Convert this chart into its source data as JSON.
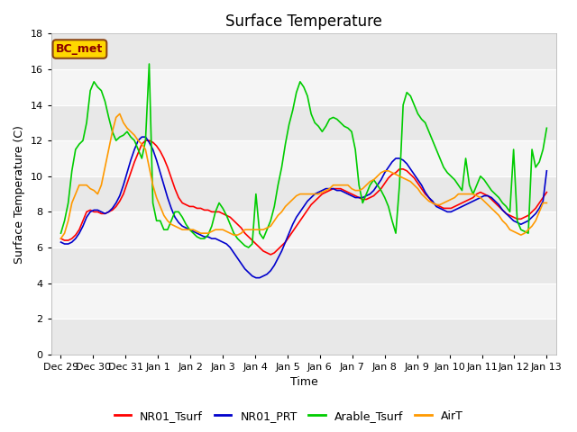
{
  "title": "Surface Temperature",
  "ylabel": "Surface Temperature (C)",
  "xlabel": "Time",
  "annotation": "BC_met",
  "ylim": [
    0,
    18
  ],
  "yticks": [
    0,
    2,
    4,
    6,
    8,
    10,
    12,
    14,
    16,
    18
  ],
  "series_colors": {
    "NR01_Tsurf": "#ff0000",
    "NR01_PRT": "#0000cc",
    "Arable_Tsurf": "#00cc00",
    "AirT": "#ff9900"
  },
  "fig_facecolor": "#ffffff",
  "band_colors": [
    "#e8e8e8",
    "#f5f5f5"
  ],
  "title_fontsize": 12,
  "axis_fontsize": 9,
  "tick_fontsize": 8,
  "legend_fontsize": 9,
  "linewidth": 1.2,
  "xtick_labels": [
    "Dec 29",
    "Dec 30",
    "Dec 31",
    "Jan 1",
    "Jan 2",
    "Jan 3",
    "Jan 4",
    "Jan 5",
    "Jan 6",
    "Jan 7",
    "Jan 8",
    "Jan 9",
    "Jan 10",
    "Jan 11",
    "Jan 12",
    "Jan 13"
  ],
  "NR01_Tsurf": [
    6.5,
    6.4,
    6.4,
    6.5,
    6.7,
    7.0,
    7.5,
    8.0,
    8.1,
    8.0,
    8.0,
    7.9,
    7.9,
    8.0,
    8.1,
    8.3,
    8.6,
    9.0,
    9.6,
    10.2,
    10.8,
    11.3,
    11.8,
    12.0,
    12.0,
    11.9,
    11.7,
    11.4,
    11.0,
    10.5,
    9.9,
    9.3,
    8.8,
    8.5,
    8.4,
    8.3,
    8.3,
    8.2,
    8.2,
    8.1,
    8.1,
    8.0,
    8.0,
    8.0,
    7.9,
    7.8,
    7.7,
    7.5,
    7.3,
    7.1,
    6.8,
    6.6,
    6.4,
    6.2,
    6.0,
    5.8,
    5.7,
    5.6,
    5.7,
    5.9,
    6.1,
    6.3,
    6.6,
    6.9,
    7.2,
    7.5,
    7.8,
    8.1,
    8.4,
    8.6,
    8.8,
    9.0,
    9.1,
    9.2,
    9.3,
    9.3,
    9.3,
    9.2,
    9.1,
    9.0,
    8.9,
    8.8,
    8.7,
    8.7,
    8.8,
    8.9,
    9.1,
    9.3,
    9.6,
    9.9,
    10.1,
    10.2,
    10.4,
    10.4,
    10.3,
    10.1,
    9.9,
    9.6,
    9.3,
    9.0,
    8.8,
    8.5,
    8.4,
    8.3,
    8.2,
    8.2,
    8.2,
    8.3,
    8.4,
    8.5,
    8.6,
    8.7,
    8.8,
    9.0,
    9.1,
    9.0,
    8.9,
    8.7,
    8.5,
    8.3,
    8.1,
    7.9,
    7.8,
    7.7,
    7.6,
    7.6,
    7.7,
    7.8,
    8.0,
    8.2,
    8.5,
    8.8,
    9.1
  ],
  "NR01_PRT": [
    6.3,
    6.2,
    6.2,
    6.3,
    6.5,
    6.8,
    7.2,
    7.7,
    8.0,
    8.1,
    8.1,
    8.0,
    7.9,
    8.0,
    8.2,
    8.5,
    8.9,
    9.5,
    10.2,
    10.9,
    11.5,
    12.0,
    12.2,
    12.2,
    11.9,
    11.5,
    10.9,
    10.2,
    9.5,
    8.8,
    8.2,
    7.7,
    7.4,
    7.2,
    7.1,
    7.0,
    6.9,
    6.8,
    6.7,
    6.6,
    6.6,
    6.5,
    6.5,
    6.4,
    6.3,
    6.2,
    6.0,
    5.7,
    5.4,
    5.1,
    4.8,
    4.6,
    4.4,
    4.3,
    4.3,
    4.4,
    4.5,
    4.7,
    5.0,
    5.4,
    5.8,
    6.3,
    6.8,
    7.3,
    7.7,
    8.0,
    8.3,
    8.6,
    8.8,
    9.0,
    9.1,
    9.2,
    9.3,
    9.3,
    9.3,
    9.2,
    9.2,
    9.1,
    9.0,
    8.9,
    8.8,
    8.8,
    8.8,
    8.9,
    9.0,
    9.2,
    9.5,
    9.8,
    10.2,
    10.5,
    10.8,
    11.0,
    11.0,
    10.9,
    10.7,
    10.4,
    10.1,
    9.8,
    9.5,
    9.1,
    8.8,
    8.6,
    8.3,
    8.2,
    8.1,
    8.0,
    8.0,
    8.1,
    8.2,
    8.3,
    8.4,
    8.5,
    8.6,
    8.7,
    8.8,
    8.9,
    8.9,
    8.8,
    8.6,
    8.4,
    8.1,
    7.9,
    7.7,
    7.5,
    7.4,
    7.3,
    7.4,
    7.5,
    7.7,
    7.9,
    8.2,
    8.6,
    10.3
  ],
  "Arable_Tsurf": [
    6.8,
    7.5,
    8.5,
    10.3,
    11.5,
    11.8,
    12.0,
    13.0,
    14.8,
    15.3,
    15.0,
    14.8,
    14.2,
    13.3,
    12.5,
    12.0,
    12.2,
    12.3,
    12.5,
    12.2,
    12.0,
    11.5,
    11.0,
    12.0,
    16.3,
    8.5,
    7.5,
    7.5,
    7.0,
    7.0,
    7.5,
    8.0,
    8.0,
    7.7,
    7.3,
    7.0,
    6.8,
    6.6,
    6.5,
    6.5,
    6.7,
    7.2,
    8.0,
    8.5,
    8.2,
    7.8,
    7.3,
    6.8,
    6.5,
    6.3,
    6.1,
    6.0,
    6.2,
    9.0,
    6.8,
    6.5,
    7.0,
    7.5,
    8.3,
    9.5,
    10.5,
    11.8,
    12.9,
    13.7,
    14.7,
    15.3,
    15.0,
    14.5,
    13.5,
    13.0,
    12.8,
    12.5,
    12.8,
    13.2,
    13.3,
    13.2,
    13.0,
    12.8,
    12.7,
    12.5,
    11.5,
    9.5,
    8.5,
    9.0,
    9.5,
    9.8,
    9.5,
    9.2,
    8.8,
    8.3,
    7.5,
    6.8,
    9.5,
    14.0,
    14.7,
    14.5,
    14.0,
    13.5,
    13.2,
    13.0,
    12.5,
    12.0,
    11.5,
    11.0,
    10.5,
    10.2,
    10.0,
    9.8,
    9.5,
    9.2,
    11.0,
    9.5,
    9.0,
    9.5,
    10.0,
    9.8,
    9.5,
    9.2,
    9.0,
    8.8,
    8.5,
    8.3,
    8.0,
    11.5,
    7.5,
    7.0,
    6.9,
    6.8,
    11.5,
    10.5,
    10.8,
    11.5,
    12.7
  ],
  "AirT": [
    6.5,
    6.8,
    7.5,
    8.5,
    9.0,
    9.5,
    9.5,
    9.5,
    9.3,
    9.2,
    9.0,
    9.5,
    10.5,
    11.5,
    12.5,
    13.3,
    13.5,
    13.0,
    12.7,
    12.5,
    12.3,
    12.0,
    11.8,
    11.5,
    10.5,
    9.5,
    8.8,
    8.3,
    7.8,
    7.5,
    7.3,
    7.2,
    7.1,
    7.0,
    7.0,
    7.0,
    7.0,
    6.9,
    6.8,
    6.8,
    6.8,
    6.9,
    7.0,
    7.0,
    7.0,
    6.9,
    6.8,
    6.7,
    6.7,
    6.8,
    7.0,
    7.0,
    7.0,
    7.0,
    7.0,
    7.0,
    7.1,
    7.2,
    7.5,
    7.8,
    8.0,
    8.3,
    8.5,
    8.7,
    8.9,
    9.0,
    9.0,
    9.0,
    9.0,
    9.0,
    9.0,
    9.1,
    9.2,
    9.3,
    9.5,
    9.5,
    9.5,
    9.5,
    9.5,
    9.3,
    9.2,
    9.2,
    9.3,
    9.5,
    9.7,
    9.8,
    10.0,
    10.2,
    10.3,
    10.3,
    10.2,
    10.1,
    10.0,
    9.9,
    9.8,
    9.7,
    9.5,
    9.3,
    9.0,
    8.8,
    8.6,
    8.5,
    8.4,
    8.4,
    8.5,
    8.6,
    8.7,
    8.8,
    9.0,
    9.0,
    9.0,
    9.0,
    9.0,
    8.9,
    8.8,
    8.6,
    8.4,
    8.2,
    8.0,
    7.8,
    7.5,
    7.3,
    7.0,
    6.9,
    6.8,
    6.7,
    6.8,
    7.0,
    7.2,
    7.5,
    8.0,
    8.5,
    8.5
  ]
}
